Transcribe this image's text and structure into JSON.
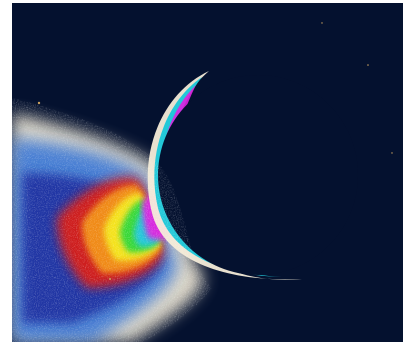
{
  "image": {
    "subject": "false-color-moon-crescent-with-plume",
    "colors": {
      "space": "#04112f",
      "halo_outer": "#f4ecd8",
      "halo_blue": "#2d6fd6",
      "plume_red": "#d81e12",
      "plume_orange": "#f08a12",
      "plume_yellow": "#f4e21a",
      "plume_green": "#38d838",
      "plume_cyan": "#22c8d8",
      "plume_magenta": "#e020e0"
    }
  }
}
